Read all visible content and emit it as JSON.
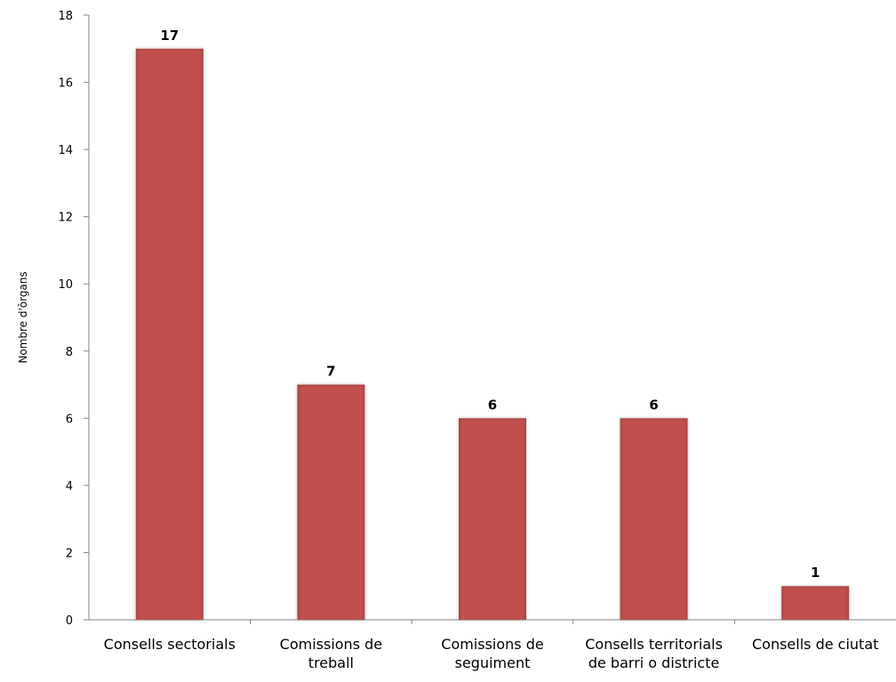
{
  "chart_data": {
    "type": "bar",
    "title": "",
    "xlabel": "",
    "ylabel": "Nombre d'òrgans",
    "ylim": [
      0,
      18
    ],
    "yticks": [
      0,
      2,
      4,
      6,
      8,
      10,
      12,
      14,
      16,
      18
    ],
    "grid": false,
    "legend": "none",
    "categories": [
      [
        "Consells sectorials"
      ],
      [
        "Comissions de",
        "treball"
      ],
      [
        "Comissions de",
        "seguiment"
      ],
      [
        "Consells territorials",
        "de barri o districte"
      ],
      [
        "Consells de ciutat"
      ]
    ],
    "series": [
      {
        "values": [
          17,
          7,
          6,
          6,
          1
        ],
        "data_labels": [
          "17",
          "7",
          "6",
          "6",
          "1"
        ],
        "color": "#c0504d"
      }
    ],
    "axis_color": "#868686",
    "text_color": "#000000"
  }
}
